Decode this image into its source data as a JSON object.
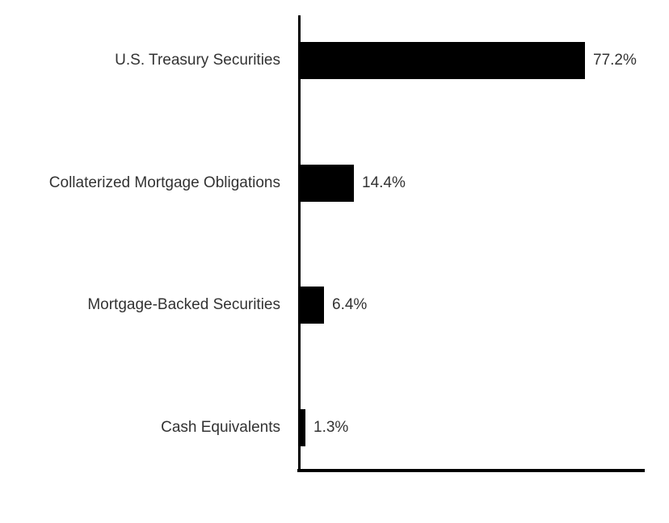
{
  "chart_data": {
    "type": "bar",
    "orientation": "horizontal",
    "title": "",
    "xlabel": "",
    "ylabel": "",
    "categories": [
      "U.S. Treasury Securities",
      "Collaterized Mortgage Obligations",
      "Mortgage-Backed Securities",
      "Cash Equivalents"
    ],
    "values": [
      77.2,
      14.4,
      6.4,
      1.3
    ],
    "value_labels": [
      "77.2%",
      "14.4%",
      "6.4%",
      "1.3%"
    ],
    "xlim": [
      0,
      100
    ],
    "grid": false,
    "legend": false,
    "colors": {
      "bar": "#000000",
      "axis": "#000000",
      "text": "#333333",
      "background": "#ffffff"
    }
  }
}
